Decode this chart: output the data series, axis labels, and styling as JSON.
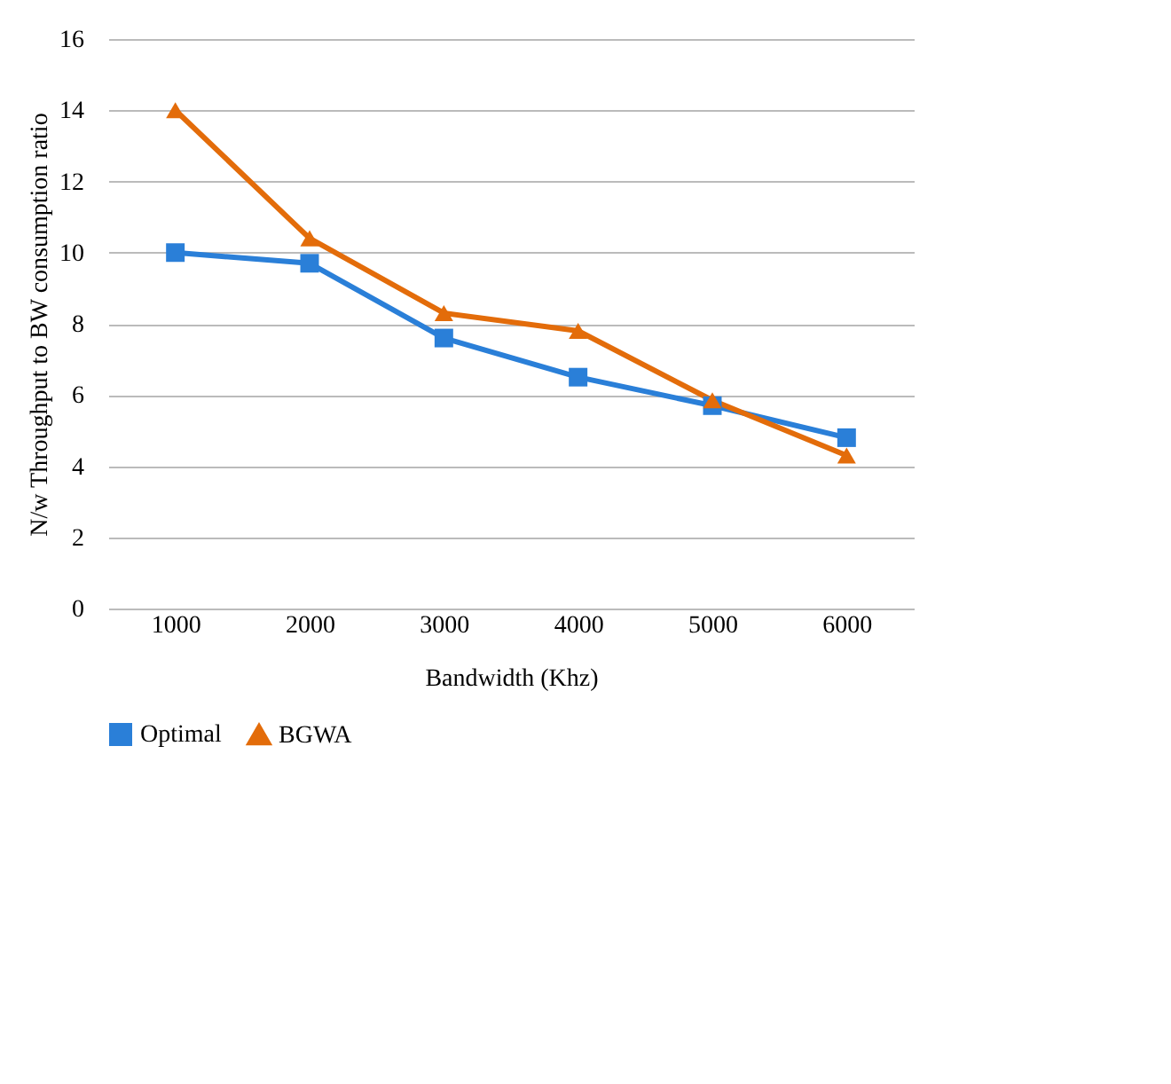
{
  "chart_data": {
    "type": "line",
    "xlabel": "Bandwidth (Khz)",
    "ylabel": "N/w Throughput to BW consumption ratio",
    "categories": [
      "1000",
      "2000",
      "3000",
      "4000",
      "5000",
      "6000"
    ],
    "series": [
      {
        "name": "Optimal",
        "color": "#2a7fd8",
        "marker": "square",
        "values": [
          10.0,
          9.7,
          7.6,
          6.5,
          5.7,
          4.8
        ]
      },
      {
        "name": "BGWA",
        "color": "#e36c0a",
        "marker": "triangle",
        "values": [
          14.0,
          10.4,
          8.3,
          7.8,
          5.85,
          4.3
        ]
      }
    ],
    "ylim": [
      0,
      16
    ],
    "yticks": [
      0,
      2,
      4,
      6,
      8,
      10,
      12,
      14,
      16
    ],
    "grid": "y",
    "legend": "bottom",
    "line_style": "solid"
  }
}
